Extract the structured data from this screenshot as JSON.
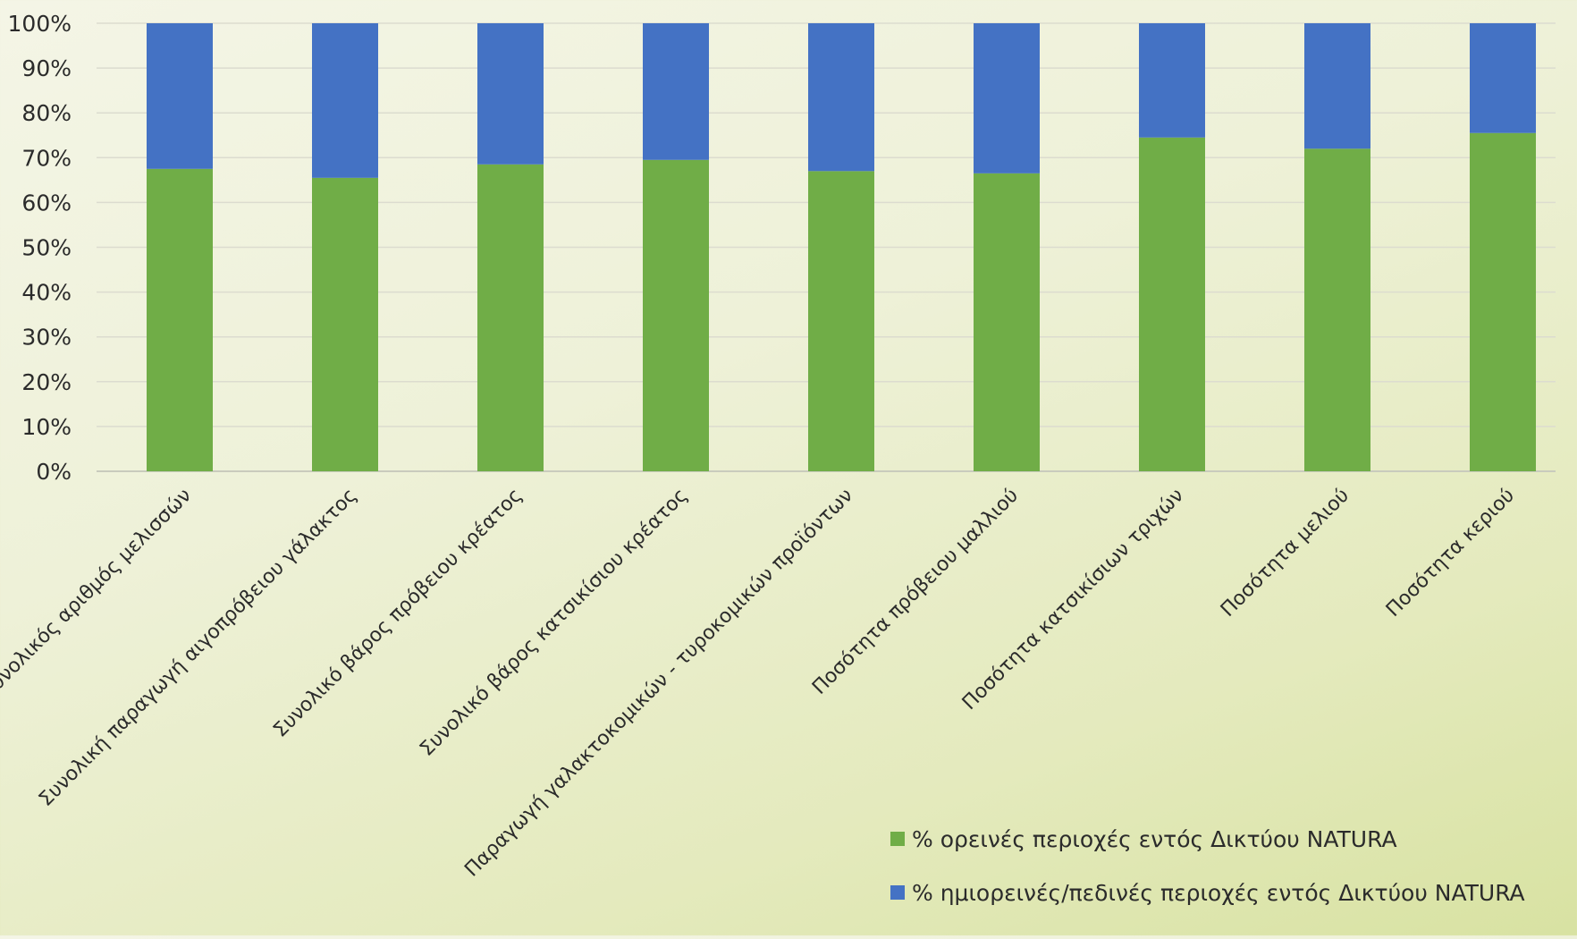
{
  "chart_data": {
    "type": "bar",
    "stacked": true,
    "percent_stacked": true,
    "categories": [
      "Συνολικός αριθμός μελισσών",
      "Συνολική παραγωγή αιγοπρόβειου γάλακτος",
      "Συνολικό βάρος πρόβειου κρέατος",
      "Συνολικό βάρος κατσικίσιου κρέατος",
      "Παραγωγή γαλακτοκομικών - τυροκομικών προϊόντων",
      "Ποσότητα πρόβειου μαλλιού",
      "Ποσότητα κατσικίσιων τριχών",
      "Ποσότητα μελιού",
      "Ποσότητα κεριού"
    ],
    "series": [
      {
        "name": "% ορεινές περιοχές εντός Δικτύου NATURA",
        "color": "#70ad47",
        "values": [
          67.5,
          65.5,
          68.5,
          69.5,
          67.0,
          66.5,
          74.5,
          72.0,
          75.5
        ]
      },
      {
        "name": "% ημιορεινές/πεδινές περιοχές εντός Δικτύου NATURA",
        "color": "#4472c4",
        "values": [
          32.5,
          34.5,
          31.5,
          30.5,
          33.0,
          33.5,
          25.5,
          28.0,
          24.5
        ]
      }
    ],
    "yticks": [
      "0%",
      "10%",
      "20%",
      "30%",
      "40%",
      "50%",
      "60%",
      "70%",
      "80%",
      "90%",
      "100%"
    ],
    "ylim": [
      0,
      100
    ],
    "grid": true,
    "legend_position": "bottom-right"
  }
}
